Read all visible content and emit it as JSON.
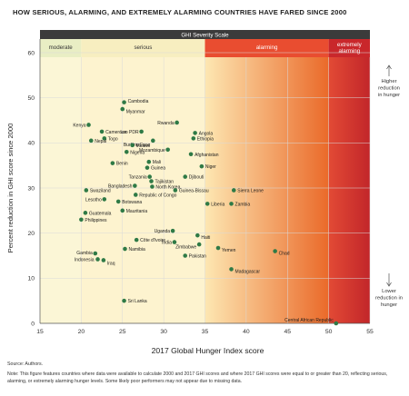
{
  "title": "HOW SERIOUS, ALARMING, AND EXTREMELY ALARMING COUNTRIES HAVE FARED SINCE 2000",
  "source": "Source: Authors.",
  "note": "Note: This figure features countries where data were available to calculate 2000 and 2017 GHI scores and where 2017 GHI scores were equal to or greater than 20, reflecting serious, alarming, or extremely alarming hunger levels. Some likely poor performers may not appear due to missing data.",
  "colors": {
    "moderate": "#fbf6d6",
    "serious": "#fdf3cf",
    "alarming_start": "#fde7b2",
    "alarming_end": "#ea6a2a",
    "extreme_start": "#e24a35",
    "extreme_end": "#c2262a",
    "point": "#2f7a46",
    "grid": "#d9d9d9"
  },
  "chart_data": {
    "type": "scatter",
    "title": "HOW SERIOUS, ALARMING, AND EXTREMELY ALARMING COUNTRIES HAVE FARED SINCE 2000",
    "severity_scale": {
      "label": "GHI Severity Scale",
      "bands": [
        {
          "label": "moderate",
          "from": 15,
          "to": 20
        },
        {
          "label": "serious",
          "from": 20,
          "to": 35
        },
        {
          "label": "alarming",
          "from": 35,
          "to": 50
        },
        {
          "label": "extremely alarming",
          "from": 50,
          "to": 55
        }
      ]
    },
    "xlabel": "2017 Global Hunger Index score",
    "ylabel": "Percent reduction in GHI score since 2000",
    "xlim": [
      15,
      55
    ],
    "ylim": [
      0,
      60
    ],
    "xticks": [
      15,
      20,
      25,
      30,
      35,
      40,
      45,
      50,
      55
    ],
    "yticks": [
      0,
      10,
      20,
      30,
      40,
      50,
      60
    ],
    "grid": true,
    "annotation_top": "Higher reduction in hunger",
    "annotation_bottom": "Lower reduction in hunger",
    "points": [
      {
        "name": "Cambodia",
        "x": 25.2,
        "y": 49
      },
      {
        "name": "Myanmar",
        "x": 25.0,
        "y": 47.5
      },
      {
        "name": "Kenya",
        "x": 20.9,
        "y": 44
      },
      {
        "name": "Cameroon",
        "x": 22.5,
        "y": 42.5
      },
      {
        "name": "Lao PDR",
        "x": 27.3,
        "y": 42.5
      },
      {
        "name": "Rwanda",
        "x": 31.6,
        "y": 44.5
      },
      {
        "name": "Angola",
        "x": 33.8,
        "y": 42.2
      },
      {
        "name": "Ethiopia",
        "x": 33.6,
        "y": 41
      },
      {
        "name": "Togo",
        "x": 22.8,
        "y": 41
      },
      {
        "name": "Burkina Faso",
        "x": 28.7,
        "y": 40.5
      },
      {
        "name": "Nepal",
        "x": 21.2,
        "y": 40.5
      },
      {
        "name": "Malawi",
        "x": 26.2,
        "y": 39.5
      },
      {
        "name": "Nigeria",
        "x": 25.5,
        "y": 38
      },
      {
        "name": "Mozambique",
        "x": 30.5,
        "y": 38.5
      },
      {
        "name": "Afghanistan",
        "x": 33.3,
        "y": 37.5
      },
      {
        "name": "Mali",
        "x": 28.2,
        "y": 35.8
      },
      {
        "name": "Benin",
        "x": 23.8,
        "y": 35.5
      },
      {
        "name": "Guinea",
        "x": 28.0,
        "y": 34.5
      },
      {
        "name": "Niger",
        "x": 34.6,
        "y": 34.8
      },
      {
        "name": "Tanzania",
        "x": 28.3,
        "y": 32.5
      },
      {
        "name": "Djibouti",
        "x": 32.6,
        "y": 32.5
      },
      {
        "name": "Tajikistan",
        "x": 28.5,
        "y": 31.5
      },
      {
        "name": "Bangladesh",
        "x": 26.5,
        "y": 30.5
      },
      {
        "name": "North Korea",
        "x": 28.6,
        "y": 30.3
      },
      {
        "name": "Swaziland",
        "x": 20.6,
        "y": 29.5
      },
      {
        "name": "Guinea-Bissau",
        "x": 31.4,
        "y": 29.5
      },
      {
        "name": "Sierra Leone",
        "x": 38.5,
        "y": 29.5
      },
      {
        "name": "Republic of Congo",
        "x": 26.6,
        "y": 28.5
      },
      {
        "name": "Lesotho",
        "x": 22.8,
        "y": 27.5
      },
      {
        "name": "Botswana",
        "x": 24.5,
        "y": 27
      },
      {
        "name": "Liberia",
        "x": 35.3,
        "y": 26.5
      },
      {
        "name": "Zambia",
        "x": 38.2,
        "y": 26.5
      },
      {
        "name": "Mauritania",
        "x": 25.0,
        "y": 25
      },
      {
        "name": "Guatemala",
        "x": 20.5,
        "y": 24.5
      },
      {
        "name": "Philippines",
        "x": 20.0,
        "y": 23
      },
      {
        "name": "Uganda",
        "x": 31.1,
        "y": 20.5
      },
      {
        "name": "Haiti",
        "x": 34.1,
        "y": 19.5
      },
      {
        "name": "Côte d'Ivoire",
        "x": 26.7,
        "y": 18.5
      },
      {
        "name": "Chad",
        "x": 43.5,
        "y": 16
      },
      {
        "name": "India",
        "x": 31.3,
        "y": 18
      },
      {
        "name": "Zimbabwe",
        "x": 34.3,
        "y": 17.5
      },
      {
        "name": "Yemen",
        "x": 36.6,
        "y": 16.7
      },
      {
        "name": "Namibia",
        "x": 25.3,
        "y": 16.5
      },
      {
        "name": "Gambia",
        "x": 21.7,
        "y": 15.5
      },
      {
        "name": "Pakistan",
        "x": 32.6,
        "y": 15
      },
      {
        "name": "Indonesia",
        "x": 22.0,
        "y": 14.2
      },
      {
        "name": "Iraq",
        "x": 22.7,
        "y": 14
      },
      {
        "name": "Madagascar",
        "x": 38.2,
        "y": 12
      },
      {
        "name": "Sri Lanka",
        "x": 25.2,
        "y": 5
      },
      {
        "name": "Central African Republic",
        "x": 50.9,
        "y": 0
      }
    ]
  }
}
